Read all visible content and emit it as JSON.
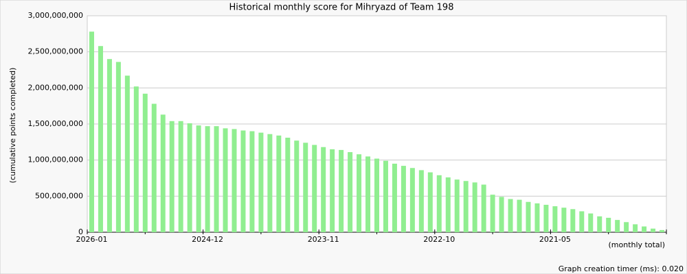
{
  "chart_data": {
    "type": "bar",
    "title": "Historical monthly score for Mihryazd of Team 198",
    "y_label": "(cumulative points completed)",
    "x_label": "(monthly total)",
    "footer": "Graph creation timer (ms): 0.020",
    "color": "#90ee90",
    "grid": true,
    "categories": [
      "2026-01",
      null,
      null,
      null,
      null,
      null,
      null,
      null,
      null,
      null,
      null,
      null,
      null,
      "2024-12",
      null,
      null,
      null,
      null,
      null,
      null,
      null,
      null,
      null,
      null,
      null,
      null,
      "2023-11",
      null,
      null,
      null,
      null,
      null,
      null,
      null,
      null,
      null,
      null,
      null,
      null,
      "2022-10",
      null,
      null,
      null,
      null,
      null,
      null,
      null,
      null,
      null,
      null,
      null,
      null,
      "2021-05",
      null,
      null,
      null,
      null,
      null,
      null,
      null,
      null,
      null,
      null,
      null,
      null
    ],
    "values": [
      2780000000,
      2580000000,
      2400000000,
      2360000000,
      2170000000,
      2020000000,
      1920000000,
      1780000000,
      1630000000,
      1540000000,
      1540000000,
      1510000000,
      1480000000,
      1470000000,
      1470000000,
      1440000000,
      1430000000,
      1410000000,
      1400000000,
      1380000000,
      1360000000,
      1340000000,
      1310000000,
      1270000000,
      1240000000,
      1210000000,
      1180000000,
      1150000000,
      1140000000,
      1110000000,
      1080000000,
      1050000000,
      1020000000,
      990000000,
      950000000,
      920000000,
      890000000,
      860000000,
      830000000,
      790000000,
      760000000,
      730000000,
      710000000,
      690000000,
      660000000,
      520000000,
      490000000,
      460000000,
      450000000,
      420000000,
      400000000,
      380000000,
      360000000,
      340000000,
      320000000,
      290000000,
      260000000,
      220000000,
      200000000,
      170000000,
      140000000,
      110000000,
      80000000,
      50000000,
      30000000
    ],
    "ylim": [
      0,
      3000000000
    ],
    "yticks": [
      0,
      {
        "value": 500000000,
        "label": "500,000,000"
      },
      {
        "value": 1000000000,
        "label": "1,000,000,000"
      },
      {
        "value": 1500000000,
        "label": "1,500,000,000"
      },
      {
        "value": 2000000000,
        "label": "2,000,000,000"
      },
      {
        "value": 2500000000,
        "label": "2,500,000,000"
      },
      {
        "value": 3000000000,
        "label": "3,000,000,000"
      }
    ]
  }
}
